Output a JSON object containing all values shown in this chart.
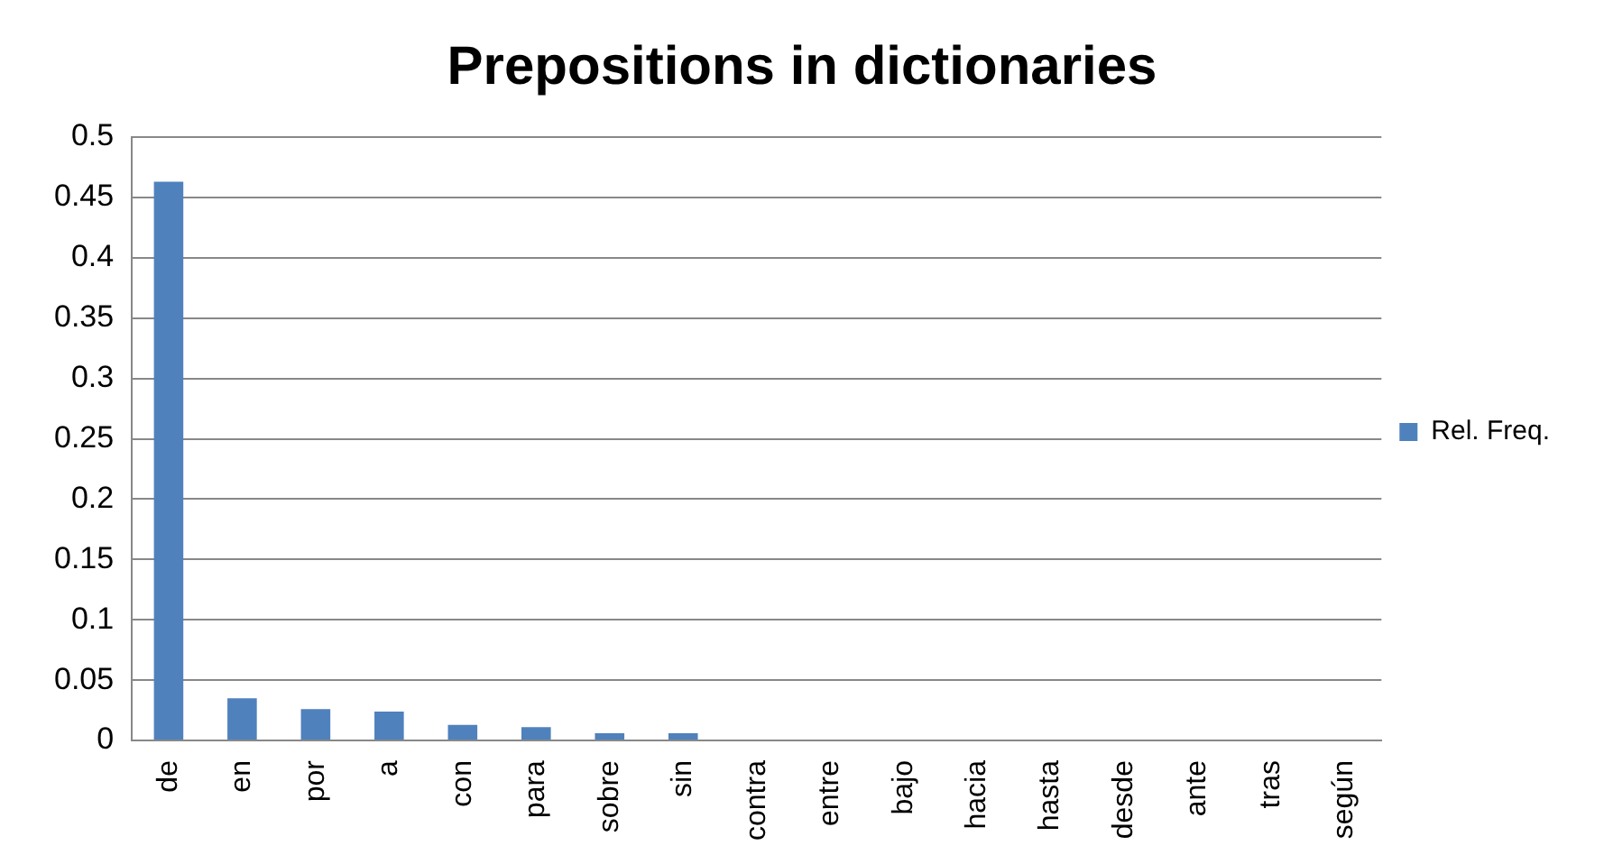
{
  "chart_data": {
    "type": "bar",
    "title": "Prepositions in dictionaries",
    "categories": [
      "de",
      "en",
      "por",
      "a",
      "con",
      "para",
      "sobre",
      "sin",
      "contra",
      "entre",
      "bajo",
      "hacia",
      "hasta",
      "desde",
      "ante",
      "tras",
      "según"
    ],
    "series": [
      {
        "name": "Rel. Freq.",
        "color": "#4f81bd",
        "values": [
          0.463,
          0.035,
          0.026,
          0.024,
          0.013,
          0.011,
          0.006,
          0.006,
          0,
          0,
          0,
          0,
          0,
          0,
          0,
          0,
          0
        ]
      }
    ],
    "ylim": [
      0,
      0.5
    ],
    "yticks": [
      0,
      0.05,
      0.1,
      0.15,
      0.2,
      0.25,
      0.3,
      0.35,
      0.4,
      0.45,
      0.5
    ],
    "grid": "y",
    "legend": "right"
  }
}
